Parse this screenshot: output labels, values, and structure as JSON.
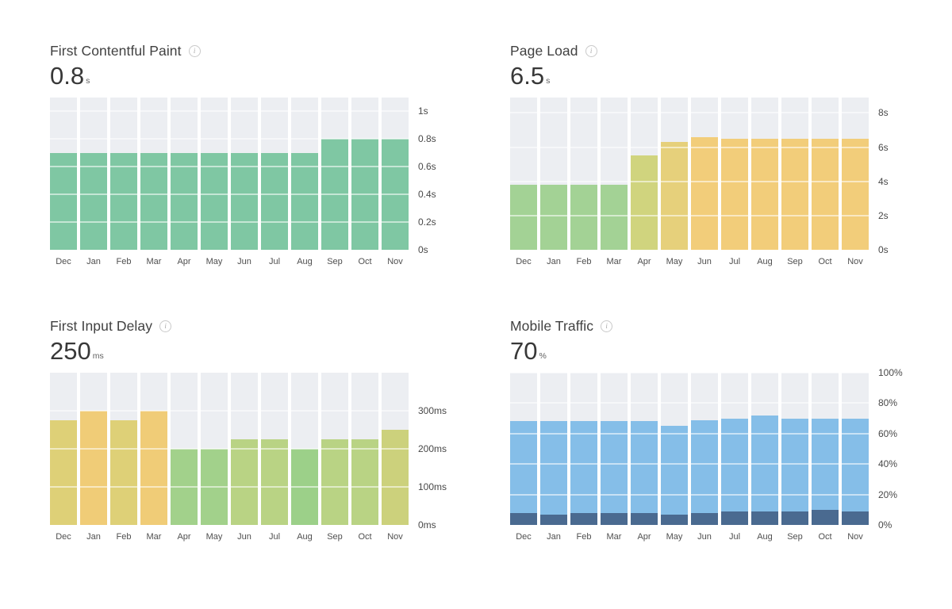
{
  "icons": {
    "info": "i"
  },
  "style": {
    "track_color": "#eceef2",
    "gridline_color": "rgba(255,255,255,0.55)",
    "title_color": "#414141",
    "value_color": "#383838"
  },
  "chart_data": [
    {
      "id": "first-contentful-paint",
      "type": "bar",
      "title": "First Contentful Paint",
      "value": "0.8",
      "unit": "s",
      "categories": [
        "Dec",
        "Jan",
        "Feb",
        "Mar",
        "Apr",
        "May",
        "Jun",
        "Jul",
        "Aug",
        "Sep",
        "Oct",
        "Nov"
      ],
      "values": [
        0.7,
        0.7,
        0.7,
        0.7,
        0.7,
        0.7,
        0.7,
        0.7,
        0.7,
        0.8,
        0.8,
        0.8
      ],
      "bar_colors": [
        "#7fc7a3",
        "#7fc7a3",
        "#7fc7a3",
        "#7fc7a3",
        "#7fc7a3",
        "#7fc7a3",
        "#7fc7a3",
        "#7fc7a3",
        "#7fc7a3",
        "#7fc7a3",
        "#7fc7a3",
        "#7fc7a3"
      ],
      "ylim": [
        0,
        1.1
      ],
      "yticks": [
        {
          "v": 0,
          "label": "0s"
        },
        {
          "v": 0.2,
          "label": "0.2s"
        },
        {
          "v": 0.4,
          "label": "0.4s"
        },
        {
          "v": 0.6,
          "label": "0.6s"
        },
        {
          "v": 0.8,
          "label": "0.8s"
        },
        {
          "v": 1,
          "label": "1s"
        }
      ],
      "legend": "none",
      "grid": "on"
    },
    {
      "id": "page-load",
      "type": "bar",
      "title": "Page Load",
      "value": "6.5",
      "unit": "s",
      "categories": [
        "Dec",
        "Jan",
        "Feb",
        "Mar",
        "Apr",
        "May",
        "Jun",
        "Jul",
        "Aug",
        "Sep",
        "Oct",
        "Nov"
      ],
      "values": [
        3.8,
        3.8,
        3.8,
        3.8,
        5.5,
        6.3,
        6.6,
        6.5,
        6.5,
        6.5,
        6.5,
        6.5
      ],
      "bar_colors": [
        "#a3d295",
        "#a3d295",
        "#a3d295",
        "#a3d295",
        "#d0d47e",
        "#e6d07b",
        "#f2cd7a",
        "#f2cd7a",
        "#f2cd7a",
        "#f2cd7a",
        "#f2cd7a",
        "#f2cd7a"
      ],
      "ylim": [
        0,
        8.9
      ],
      "yticks": [
        {
          "v": 0,
          "label": "0s"
        },
        {
          "v": 2,
          "label": "2s"
        },
        {
          "v": 4,
          "label": "4s"
        },
        {
          "v": 6,
          "label": "6s"
        },
        {
          "v": 8,
          "label": "8s"
        }
      ],
      "legend": "none",
      "grid": "on"
    },
    {
      "id": "first-input-delay",
      "type": "bar",
      "title": "First Input Delay",
      "value": "250",
      "unit": "ms",
      "categories": [
        "Dec",
        "Jan",
        "Feb",
        "Mar",
        "Apr",
        "May",
        "Jun",
        "Jul",
        "Aug",
        "Sep",
        "Oct",
        "Nov"
      ],
      "values": [
        275,
        300,
        275,
        300,
        200,
        200,
        225,
        225,
        200,
        225,
        225,
        250
      ],
      "bar_colors": [
        "#ded077",
        "#f0cc77",
        "#ded077",
        "#f0cc77",
        "#a2d18b",
        "#a2d18b",
        "#b9d384",
        "#b9d384",
        "#9cd089",
        "#b9d384",
        "#b9d384",
        "#ccd17c"
      ],
      "ylim": [
        0,
        400
      ],
      "yticks": [
        {
          "v": 0,
          "label": "0ms"
        },
        {
          "v": 100,
          "label": "100ms"
        },
        {
          "v": 200,
          "label": "200ms"
        },
        {
          "v": 300,
          "label": "300ms"
        }
      ],
      "legend": "none",
      "grid": "on"
    },
    {
      "id": "mobile-traffic",
      "type": "stacked-bar",
      "title": "Mobile Traffic",
      "value": "70",
      "unit": "%",
      "categories": [
        "Dec",
        "Jan",
        "Feb",
        "Mar",
        "Apr",
        "May",
        "Jun",
        "Jul",
        "Aug",
        "Sep",
        "Oct",
        "Nov"
      ],
      "series": [
        {
          "name": "dark",
          "color": "#4a6a90",
          "values": [
            8,
            7,
            8,
            8,
            8,
            7,
            8,
            9,
            9,
            9,
            10,
            9
          ]
        },
        {
          "name": "light",
          "color": "#85bee8",
          "values": [
            60,
            61,
            60,
            60,
            60,
            58,
            61,
            61,
            63,
            61,
            60,
            61
          ]
        }
      ],
      "ylim": [
        0,
        100
      ],
      "yticks": [
        {
          "v": 0,
          "label": "0%"
        },
        {
          "v": 20,
          "label": "20%"
        },
        {
          "v": 40,
          "label": "40%"
        },
        {
          "v": 60,
          "label": "60%"
        },
        {
          "v": 80,
          "label": "80%"
        },
        {
          "v": 100,
          "label": "100%"
        }
      ],
      "legend": "none",
      "grid": "on"
    }
  ]
}
